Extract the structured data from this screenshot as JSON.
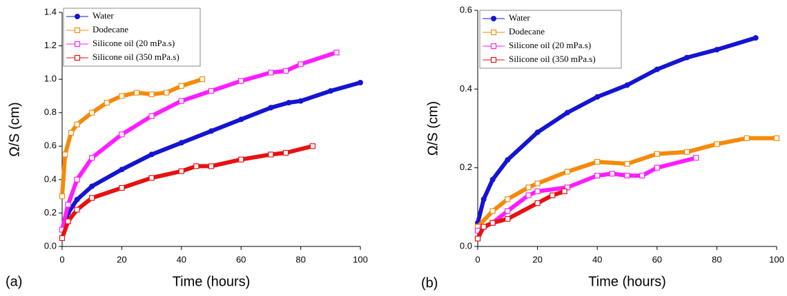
{
  "chart_data": [
    {
      "type": "line",
      "panel_label": "(a)",
      "xlabel": "Time (hours)",
      "ylabel": "Ω/S (cm)",
      "xlim": [
        0,
        100
      ],
      "xticks": [
        0,
        20,
        40,
        60,
        80,
        100
      ],
      "ylim": [
        0,
        1.4
      ],
      "yticks": [
        {
          "value": 0,
          "label": "0.0"
        },
        0.2,
        0.4,
        0.6,
        0.8,
        {
          "value": 1,
          "label": "1.0"
        },
        1.2,
        1.4
      ],
      "legend_position": "upper left",
      "series": [
        {
          "name": "Water",
          "color": "#1414d2",
          "marker": "circle",
          "x": [
            0,
            2,
            5,
            10,
            20,
            30,
            40,
            50,
            60,
            70,
            76,
            80,
            90,
            100
          ],
          "values": [
            0.1,
            0.2,
            0.28,
            0.36,
            0.46,
            0.55,
            0.62,
            0.69,
            0.76,
            0.83,
            0.86,
            0.87,
            0.93,
            0.98
          ]
        },
        {
          "name": "Dodecane",
          "color": "#f58a0a",
          "marker": "square",
          "x": [
            0,
            1,
            3,
            5,
            10,
            15,
            20,
            25,
            30,
            35,
            40,
            47
          ],
          "values": [
            0.3,
            0.55,
            0.68,
            0.73,
            0.8,
            0.86,
            0.9,
            0.92,
            0.91,
            0.92,
            0.96,
            1.0
          ]
        },
        {
          "name": "Silicone oil (20 mPa.s)",
          "color": "#ff1eff",
          "marker": "square",
          "x": [
            0,
            2,
            5,
            10,
            20,
            30,
            40,
            50,
            60,
            70,
            75,
            80,
            92
          ],
          "values": [
            0.1,
            0.25,
            0.4,
            0.53,
            0.67,
            0.78,
            0.87,
            0.93,
            0.99,
            1.04,
            1.05,
            1.09,
            1.16
          ]
        },
        {
          "name": "Silicone oil (350 mPa.s)",
          "color": "#e81010",
          "marker": "square",
          "x": [
            0,
            2,
            5,
            10,
            20,
            30,
            40,
            45,
            50,
            60,
            70,
            75,
            84
          ],
          "values": [
            0.05,
            0.15,
            0.22,
            0.29,
            0.35,
            0.41,
            0.45,
            0.48,
            0.48,
            0.52,
            0.55,
            0.56,
            0.6
          ]
        }
      ]
    },
    {
      "type": "line",
      "panel_label": "(b)",
      "xlabel": "Time (hours)",
      "ylabel": "Ω/S (cm)",
      "xlim": [
        0,
        100
      ],
      "xticks": [
        0,
        20,
        40,
        60,
        80,
        100
      ],
      "ylim": [
        0,
        0.6
      ],
      "yticks": [
        {
          "value": 0,
          "label": "0.0"
        },
        0.2,
        0.4,
        0.6
      ],
      "legend_position": "upper left",
      "series": [
        {
          "name": "Water",
          "color": "#1414d2",
          "marker": "circle",
          "x": [
            0,
            2,
            5,
            10,
            20,
            30,
            40,
            50,
            60,
            70,
            80,
            93
          ],
          "values": [
            0.06,
            0.12,
            0.17,
            0.22,
            0.29,
            0.34,
            0.38,
            0.41,
            0.45,
            0.48,
            0.5,
            0.53
          ]
        },
        {
          "name": "Dodecane",
          "color": "#f58a0a",
          "marker": "square",
          "x": [
            0,
            5,
            10,
            17,
            20,
            30,
            40,
            50,
            60,
            70,
            80,
            90,
            100
          ],
          "values": [
            0.05,
            0.09,
            0.12,
            0.15,
            0.16,
            0.19,
            0.215,
            0.21,
            0.235,
            0.24,
            0.26,
            0.275,
            0.275
          ]
        },
        {
          "name": "Silicone oil (20 mPa.s)",
          "color": "#ff1eff",
          "marker": "square",
          "x": [
            0,
            5,
            10,
            17,
            20,
            30,
            40,
            45,
            50,
            55,
            60,
            73
          ],
          "values": [
            0.04,
            0.06,
            0.09,
            0.13,
            0.14,
            0.15,
            0.18,
            0.185,
            0.18,
            0.18,
            0.2,
            0.225
          ]
        },
        {
          "name": "Silicone oil (350 mPa.s)",
          "color": "#e81010",
          "marker": "square",
          "x": [
            0,
            2,
            5,
            10,
            20,
            25,
            29
          ],
          "values": [
            0.02,
            0.05,
            0.06,
            0.07,
            0.11,
            0.13,
            0.14
          ]
        }
      ]
    }
  ]
}
